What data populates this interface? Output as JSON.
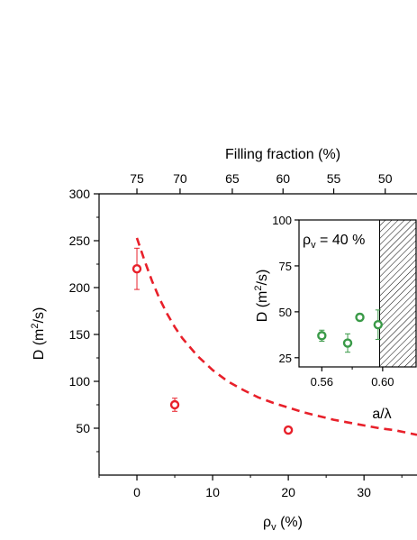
{
  "chart_data": [
    {
      "type": "scatter",
      "title": "",
      "xlabel": "ρ_v (%)",
      "xlabel_main": "ρ",
      "xlabel_sub": "v",
      "xlabel_unit": " (%)",
      "ylabel": "D (m²/s)",
      "ylabel_parts": {
        "pre": "D (m",
        "sup": "2",
        "post": "/s)"
      },
      "xlim": [
        -5,
        37
      ],
      "ylim": [
        0,
        300
      ],
      "xticks": [
        0,
        10,
        20,
        30
      ],
      "yticks": [
        50,
        100,
        150,
        200,
        250,
        300
      ],
      "top_axis": {
        "label": "Filling fraction (%)",
        "ticks": [
          75,
          70,
          65,
          60,
          55,
          50
        ],
        "tick_positions_xdata": [
          0,
          5.7,
          12.6,
          19.3,
          26.0,
          32.8
        ]
      },
      "series": [
        {
          "kind": "points",
          "color": "#e8202a",
          "x": [
            0,
            5,
            20
          ],
          "y": [
            220,
            75,
            48
          ],
          "yerr": [
            22,
            7,
            3
          ]
        },
        {
          "kind": "fit-curve",
          "style": "dashed",
          "color": "#e8202a",
          "x": [
            0,
            1,
            2,
            3,
            4,
            5,
            6,
            8,
            10,
            12,
            14,
            16,
            18,
            20,
            22,
            24,
            26,
            28,
            30,
            32,
            34,
            37
          ],
          "y": [
            253,
            229,
            207,
            188,
            172,
            158,
            146,
            127,
            112,
            100,
            91,
            83,
            77,
            72,
            67,
            63,
            59,
            56,
            53,
            50,
            48,
            43
          ]
        }
      ]
    },
    {
      "type": "scatter",
      "title": "",
      "annotation": {
        "pre": "ρ",
        "sub": "v",
        "post": " = 40 %"
      },
      "xlabel": "a/λ",
      "ylabel": "D (m²/s)",
      "ylabel_parts": {
        "pre": "D (m",
        "sup": "2",
        "post": "/s)"
      },
      "xlim": [
        0.545,
        0.622
      ],
      "ylim": [
        20,
        100
      ],
      "xticks": [
        0.56,
        0.6
      ],
      "xtick_labels": [
        "0.56",
        "0.60"
      ],
      "yticks": [
        25,
        50,
        75,
        100
      ],
      "hatched_region_x": [
        0.598,
        0.622
      ],
      "series": [
        {
          "kind": "points",
          "color": "#3a9a48",
          "x": [
            0.56,
            0.577,
            0.585,
            0.597
          ],
          "y": [
            37,
            33,
            47,
            43
          ],
          "yerr": [
            3,
            5,
            2,
            8
          ]
        }
      ]
    }
  ]
}
